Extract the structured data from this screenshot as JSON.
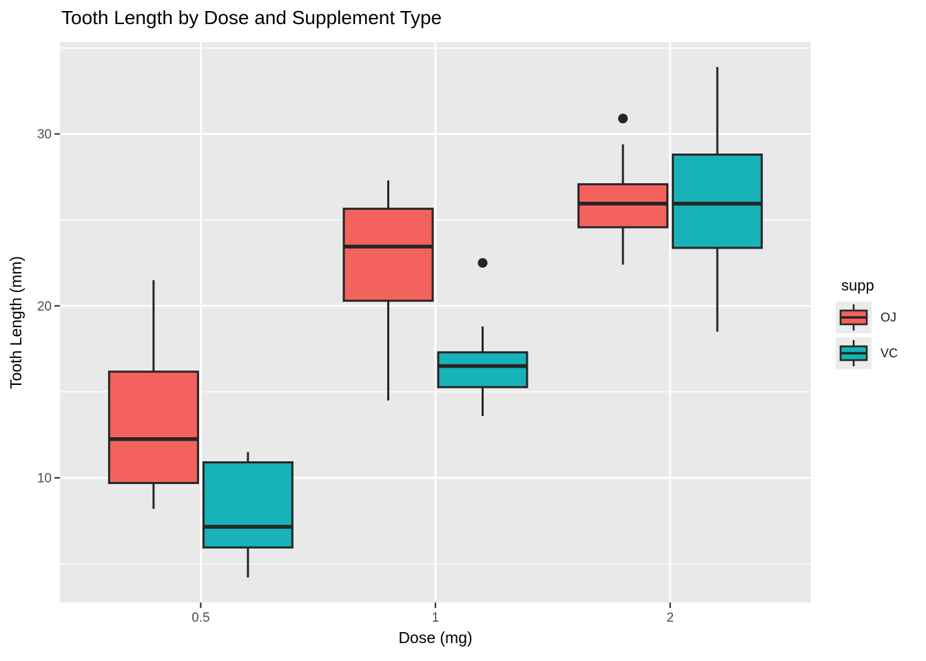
{
  "chart_data": {
    "type": "boxplot",
    "title": "Tooth Length by Dose and Supplement Type",
    "xlabel": "Dose (mg)",
    "ylabel": "Tooth Length (mm)",
    "x_categories": [
      "0.5",
      "1",
      "2"
    ],
    "y_axis": {
      "major_ticks": [
        10,
        20,
        30
      ],
      "minor_ticks": [
        5,
        15,
        25,
        35
      ],
      "ylim": [
        2.75,
        35.35
      ]
    },
    "grid": "white major and minor lines on grey panel",
    "legend": {
      "title": "supp",
      "position": "right",
      "entries": [
        {
          "label": "OJ",
          "color": "#F4625D"
        },
        {
          "label": "VC",
          "color": "#17B3B8"
        }
      ]
    },
    "series": [
      {
        "name": "OJ",
        "color": "#F4625D",
        "boxes": [
          {
            "category": "0.5",
            "min": 8.2,
            "q1": 9.7,
            "median": 12.25,
            "q3": 16.175,
            "max": 21.5,
            "outliers": []
          },
          {
            "category": "1",
            "min": 14.5,
            "q1": 20.3,
            "median": 23.45,
            "q3": 25.65,
            "max": 27.3,
            "outliers": []
          },
          {
            "category": "2",
            "min": 22.4,
            "q1": 24.575,
            "median": 25.95,
            "q3": 27.075,
            "max": 29.4,
            "outliers": [
              30.9
            ]
          }
        ]
      },
      {
        "name": "VC",
        "color": "#17B3B8",
        "boxes": [
          {
            "category": "0.5",
            "min": 4.2,
            "q1": 5.95,
            "median": 7.15,
            "q3": 10.9,
            "max": 11.5,
            "outliers": []
          },
          {
            "category": "1",
            "min": 13.6,
            "q1": 15.275,
            "median": 16.5,
            "q3": 17.3,
            "max": 18.8,
            "outliers": [
              22.5
            ]
          },
          {
            "category": "2",
            "min": 18.5,
            "q1": 23.375,
            "median": 25.95,
            "q3": 28.8,
            "max": 33.9,
            "outliers": []
          }
        ]
      }
    ]
  },
  "style": {
    "panel_bg": "#E9E9E9",
    "grid_color": "#FFFFFF",
    "box_stroke": "#262626",
    "median_color": "#262626",
    "outlier_color": "#262626",
    "tick_label_color": "#4D4D4D",
    "tick_mark_color": "#333333",
    "legend_key_bg": "#EBEBEB"
  }
}
